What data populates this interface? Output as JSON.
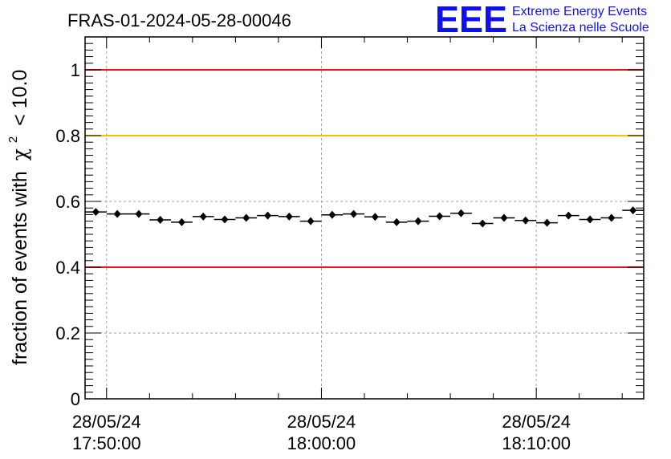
{
  "chart_data": {
    "type": "scatter",
    "title": "FRAS-01-2024-05-28-00046",
    "ylabel_prefix": "fraction of events with",
    "ylabel_symbol": "χ",
    "ylabel_superscript": "2",
    "ylabel_suffix": "< 10.0",
    "xlabel": "",
    "ylim": [
      0,
      1.1
    ],
    "xlim": [
      "17:49:00",
      "18:15:00"
    ],
    "y_ticks": [
      0,
      0.2,
      0.4,
      0.6,
      0.8,
      1
    ],
    "y_tick_labels": [
      "0",
      "0.2",
      "0.4",
      "0.6",
      "0.8",
      "1"
    ],
    "x_ticks": [
      {
        "date": "28/05/24",
        "time": "17:50:00"
      },
      {
        "date": "28/05/24",
        "time": "18:00:00"
      },
      {
        "date": "28/05/24",
        "time": "18:10:00"
      }
    ],
    "grid": true,
    "reference_lines": [
      {
        "y": 1.0,
        "color": "#e8141a"
      },
      {
        "y": 0.8,
        "color": "#ffc000"
      },
      {
        "y": 0.4,
        "color": "#e8141a"
      }
    ],
    "bin_minutes": 1,
    "series": [
      {
        "x": [
          "17:49:30",
          "17:50:30",
          "17:51:30",
          "17:52:30",
          "17:53:30",
          "17:54:30",
          "17:55:30",
          "17:56:30",
          "17:57:30",
          "17:58:30",
          "17:59:30",
          "18:00:30",
          "18:01:30",
          "18:02:30",
          "18:03:30",
          "18:04:30",
          "18:05:30",
          "18:06:30",
          "18:07:30",
          "18:08:30",
          "18:09:30",
          "18:10:30",
          "18:11:30",
          "18:12:30",
          "18:13:30",
          "18:14:30"
        ],
        "y": [
          0.568,
          0.562,
          0.562,
          0.544,
          0.537,
          0.554,
          0.545,
          0.55,
          0.557,
          0.554,
          0.54,
          0.559,
          0.562,
          0.553,
          0.537,
          0.54,
          0.555,
          0.564,
          0.533,
          0.55,
          0.542,
          0.535,
          0.557,
          0.545,
          0.55,
          0.573
        ],
        "yerr": 0.006,
        "color": "#000000"
      }
    ]
  },
  "logo": {
    "mark": "EEE",
    "line1": "Extreme Energy Events",
    "line2": "La Scienza nelle Scuole"
  }
}
